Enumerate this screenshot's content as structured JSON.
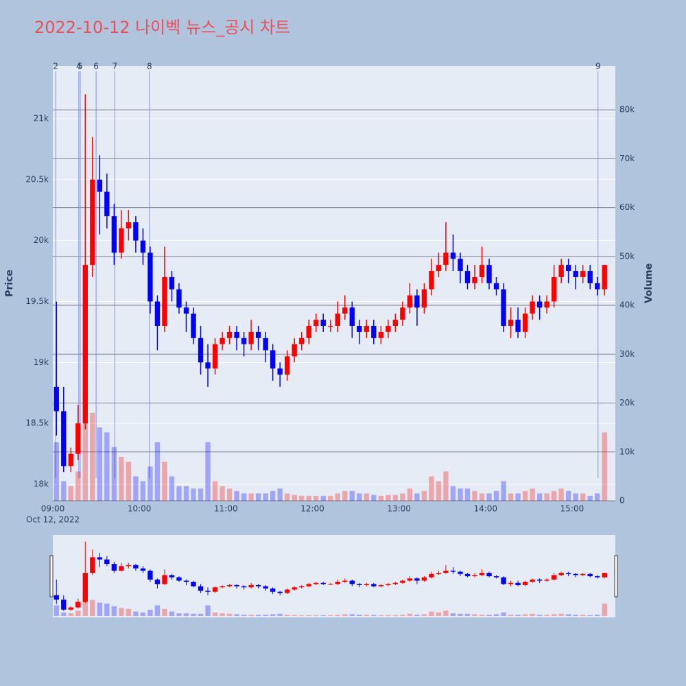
{
  "chart_data": {
    "type": "candlestick",
    "title": "2022-10-12 나이벡 뉴스_공시 차트",
    "y_title": "Price",
    "y2_title": "Volume",
    "x_date_label": "Oct 12, 2022",
    "up_color": "#ff0000",
    "down_color": "#0000ff",
    "xlim": [
      "09:00",
      "15:30"
    ],
    "xticks": [
      "09:00",
      "10:00",
      "11:00",
      "12:00",
      "13:00",
      "14:00",
      "15:00"
    ],
    "ylim": [
      17865,
      21433
    ],
    "yticks": [
      {
        "value": 18000,
        "label": "18k"
      },
      {
        "value": 18500,
        "label": "18.5k"
      },
      {
        "value": 19000,
        "label": "19k"
      },
      {
        "value": 19500,
        "label": "19.5k"
      },
      {
        "value": 20000,
        "label": "20k"
      },
      {
        "value": 20500,
        "label": "20.5k"
      },
      {
        "value": 21000,
        "label": "21k"
      }
    ],
    "y2lim": [
      0,
      89000
    ],
    "y2ticks": [
      0,
      {
        "value": 10000,
        "label": "10k"
      },
      {
        "value": 20000,
        "label": "20k"
      },
      {
        "value": 30000,
        "label": "30k"
      },
      {
        "value": 40000,
        "label": "40k"
      },
      {
        "value": 50000,
        "label": "50k"
      },
      {
        "value": 60000,
        "label": "60k"
      },
      {
        "value": 70000,
        "label": "70k"
      },
      {
        "value": 80000,
        "label": "80k"
      }
    ],
    "markers": [
      {
        "label": "2",
        "x": "09:02"
      },
      {
        "label": "4",
        "x": "09:18"
      },
      {
        "label": "5",
        "x": "09:19"
      },
      {
        "label": "6",
        "x": "09:30"
      },
      {
        "label": "7",
        "x": "09:43"
      },
      {
        "label": "8",
        "x": "10:07"
      },
      {
        "label": "9",
        "x": "15:18"
      }
    ],
    "x": [
      "09:00",
      "09:05",
      "09:10",
      "09:15",
      "09:20",
      "09:25",
      "09:30",
      "09:35",
      "09:40",
      "09:45",
      "09:50",
      "09:55",
      "10:00",
      "10:05",
      "10:10",
      "10:15",
      "10:20",
      "10:25",
      "10:30",
      "10:35",
      "10:40",
      "10:45",
      "10:50",
      "10:55",
      "11:00",
      "11:05",
      "11:10",
      "11:15",
      "11:20",
      "11:25",
      "11:30",
      "11:35",
      "11:40",
      "11:45",
      "11:50",
      "11:55",
      "12:00",
      "12:05",
      "12:10",
      "12:15",
      "12:20",
      "12:25",
      "12:30",
      "12:35",
      "12:40",
      "12:45",
      "12:50",
      "12:55",
      "13:00",
      "13:05",
      "13:10",
      "13:15",
      "13:20",
      "13:25",
      "13:30",
      "13:35",
      "13:40",
      "13:45",
      "13:50",
      "13:55",
      "14:00",
      "14:05",
      "14:10",
      "14:15",
      "14:20",
      "14:25",
      "14:30",
      "14:35",
      "14:40",
      "14:45",
      "14:50",
      "14:55",
      "15:00",
      "15:05",
      "15:10",
      "15:15",
      "15:20"
    ],
    "open": [
      18800,
      18600,
      18150,
      18250,
      18500,
      19800,
      20500,
      20400,
      20200,
      19900,
      20100,
      20150,
      20000,
      19900,
      19500,
      19300,
      19700,
      19600,
      19450,
      19400,
      19200,
      19000,
      18950,
      19150,
      19200,
      19250,
      19200,
      19150,
      19250,
      19200,
      19100,
      18950,
      18900,
      19050,
      19150,
      19200,
      19300,
      19350,
      19300,
      19300,
      19400,
      19450,
      19300,
      19250,
      19300,
      19200,
      19250,
      19300,
      19350,
      19450,
      19550,
      19450,
      19600,
      19750,
      19800,
      19900,
      19850,
      19750,
      19650,
      19700,
      19800,
      19650,
      19600,
      19300,
      19350,
      19250,
      19400,
      19500,
      19450,
      19500,
      19700,
      19800,
      19750,
      19700,
      19750,
      19650,
      19600
    ],
    "high": [
      19500,
      18800,
      18300,
      18650,
      21200,
      20850,
      20700,
      20550,
      20300,
      20250,
      20250,
      20200,
      20100,
      19950,
      19550,
      19950,
      19750,
      19650,
      19500,
      19450,
      19300,
      19150,
      19200,
      19250,
      19300,
      19300,
      19250,
      19350,
      19300,
      19250,
      19150,
      19000,
      19100,
      19200,
      19250,
      19350,
      19400,
      19400,
      19350,
      19500,
      19550,
      19500,
      19350,
      19350,
      19350,
      19300,
      19350,
      19400,
      19500,
      19650,
      19600,
      19650,
      19850,
      19900,
      20150,
      20050,
      19900,
      19800,
      19800,
      19950,
      19850,
      19700,
      19650,
      19450,
      19450,
      19450,
      19550,
      19550,
      19550,
      19800,
      19850,
      19850,
      19800,
      19800,
      19800,
      19700,
      19800
    ],
    "low": [
      18400,
      18100,
      18100,
      18200,
      18450,
      19700,
      20050,
      20100,
      19800,
      19850,
      20000,
      19900,
      19800,
      19400,
      19100,
      19250,
      19500,
      19400,
      19250,
      19150,
      18900,
      18800,
      18900,
      19100,
      19150,
      19100,
      19050,
      19100,
      19100,
      19000,
      18850,
      18800,
      18850,
      19000,
      19100,
      19150,
      19250,
      19250,
      19250,
      19250,
      19350,
      19200,
      19150,
      19200,
      19150,
      19150,
      19200,
      19250,
      19300,
      19400,
      19300,
      19400,
      19550,
      19700,
      19750,
      19750,
      19650,
      19600,
      19600,
      19650,
      19600,
      19550,
      19250,
      19200,
      19200,
      19200,
      19350,
      19350,
      19400,
      19450,
      19650,
      19650,
      19600,
      19650,
      19600,
      19550,
      19550
    ],
    "close": [
      18600,
      18150,
      18250,
      18500,
      19800,
      20500,
      20400,
      20200,
      19900,
      20100,
      20150,
      20000,
      19900,
      19500,
      19300,
      19700,
      19600,
      19450,
      19400,
      19200,
      19000,
      18950,
      19150,
      19200,
      19250,
      19200,
      19150,
      19250,
      19200,
      19100,
      18950,
      18900,
      19050,
      19150,
      19200,
      19300,
      19350,
      19300,
      19300,
      19400,
      19450,
      19300,
      19250,
      19300,
      19200,
      19250,
      19300,
      19350,
      19450,
      19550,
      19450,
      19600,
      19750,
      19800,
      19900,
      19850,
      19750,
      19650,
      19700,
      19800,
      19650,
      19600,
      19300,
      19350,
      19250,
      19400,
      19500,
      19450,
      19500,
      19700,
      19800,
      19750,
      19700,
      19750,
      19650,
      19600,
      19800
    ],
    "volume": [
      12000,
      4000,
      3000,
      6000,
      25000,
      18000,
      15000,
      14000,
      11000,
      9000,
      8000,
      5000,
      4000,
      7000,
      12000,
      8000,
      5000,
      3000,
      3000,
      2500,
      2500,
      12000,
      4000,
      3000,
      2500,
      2000,
      1500,
      1500,
      1500,
      1500,
      2000,
      2500,
      1500,
      1200,
      1000,
      1000,
      1000,
      1000,
      1000,
      1500,
      2000,
      2000,
      1500,
      1500,
      1200,
      1000,
      1200,
      1200,
      1500,
      2500,
      1500,
      2000,
      5000,
      4000,
      6000,
      3000,
      2500,
      2500,
      2000,
      1500,
      1500,
      2000,
      4000,
      1500,
      1500,
      2000,
      2500,
      1500,
      1500,
      2000,
      2500,
      2000,
      1500,
      1500,
      1000,
      1500,
      14000
    ]
  }
}
